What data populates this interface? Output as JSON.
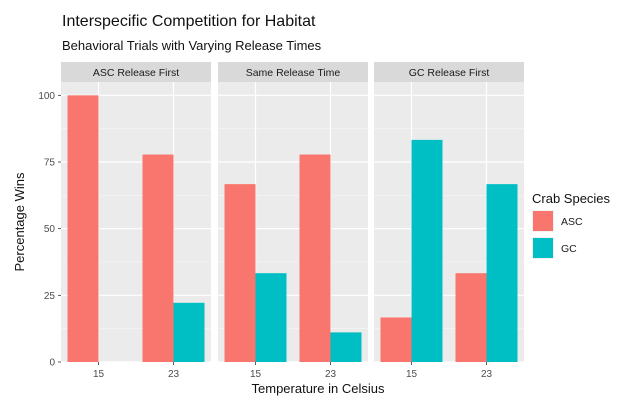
{
  "chart_data": {
    "type": "bar",
    "title": "Interspecific Competition for Habitat",
    "subtitle": "Behavioral Trials with Varying Release Times",
    "xlabel": "Temperature in Celsius",
    "ylabel": "Percentage Wins",
    "ylim": [
      0,
      105
    ],
    "yticks": [
      0,
      25,
      50,
      75,
      100
    ],
    "grid": true,
    "legend": {
      "title": "Crab Species",
      "position": "right",
      "entries": [
        {
          "name": "ASC",
          "color": "#F8766D"
        },
        {
          "name": "GC",
          "color": "#00BFC4"
        }
      ]
    },
    "categories": [
      "15",
      "23"
    ],
    "facets": [
      {
        "label": "ASC Release First",
        "series": [
          {
            "name": "ASC",
            "values": [
              100,
              77.8
            ]
          },
          {
            "name": "GC",
            "values": [
              0,
              22.2
            ]
          }
        ]
      },
      {
        "label": "Same Release Time",
        "series": [
          {
            "name": "ASC",
            "values": [
              66.7,
              77.8
            ]
          },
          {
            "name": "GC",
            "values": [
              33.3,
              11.1
            ]
          }
        ]
      },
      {
        "label": "GC Release First",
        "series": [
          {
            "name": "ASC",
            "values": [
              16.7,
              33.3
            ]
          },
          {
            "name": "GC",
            "values": [
              83.3,
              66.7
            ]
          }
        ]
      }
    ]
  }
}
